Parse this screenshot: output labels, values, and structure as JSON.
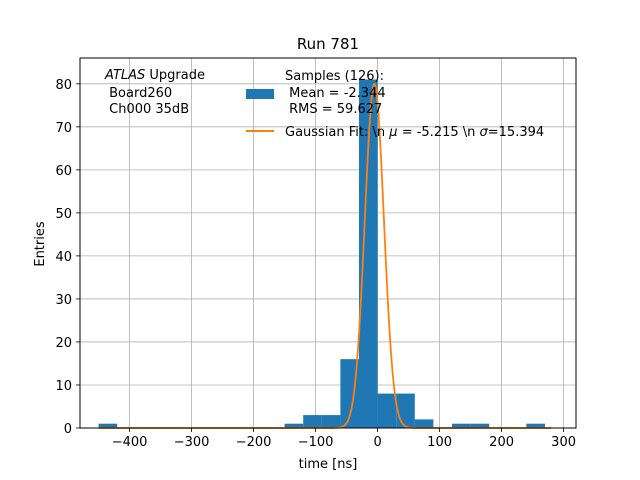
{
  "chart_data": {
    "type": "bar",
    "title": "Run 781",
    "xlabel": "time [ns]",
    "ylabel": "Entries",
    "xlim": [
      -480,
      320
    ],
    "ylim": [
      0,
      86
    ],
    "xticks": [
      -400,
      -300,
      -200,
      -100,
      0,
      100,
      200,
      300
    ],
    "xtick_labels": [
      "−400",
      "−300",
      "−200",
      "−100",
      "0",
      "100",
      "200",
      "300"
    ],
    "yticks": [
      0,
      10,
      20,
      30,
      40,
      50,
      60,
      70,
      80
    ],
    "grid": true,
    "histogram": {
      "name": "Samples (126):\n Mean = -2.344\n RMS = 59.627",
      "color": "#1f77b4",
      "bin_edges": [
        -450,
        -420,
        -390,
        -360,
        -330,
        -300,
        -270,
        -240,
        -210,
        -180,
        -150,
        -120,
        -90,
        -60,
        -30,
        0,
        30,
        60,
        90,
        120,
        150,
        180,
        210,
        240,
        270,
        300
      ],
      "counts": [
        1,
        0,
        0,
        0,
        0,
        0,
        0,
        0,
        0,
        0,
        1,
        3,
        3,
        16,
        81,
        8,
        8,
        2,
        0,
        1,
        1,
        0,
        0,
        1,
        0
      ]
    },
    "fit": {
      "name": "Gaussian Fit: \\n $\\mu$ = -5.215 \\n $\\sigma$=15.394",
      "color": "#ff7f0e",
      "mu": -5.215,
      "sigma": 15.394,
      "amplitude": 80,
      "x_range": [
        -450,
        280
      ]
    },
    "annotation": {
      "line1_italic": "ATLAS",
      "line1_rest": " Upgrade",
      "line2": " Board260",
      "line3": " Ch000 35dB"
    },
    "legend": {
      "placement": "top-center",
      "hist_lines": [
        "Samples (126):",
        " Mean = -2.344",
        " RMS = 59.627"
      ],
      "fit_parts": [
        "Gaussian Fit: \\n ",
        "μ",
        " = -5.215 \\n ",
        "σ",
        "=15.394"
      ]
    }
  }
}
